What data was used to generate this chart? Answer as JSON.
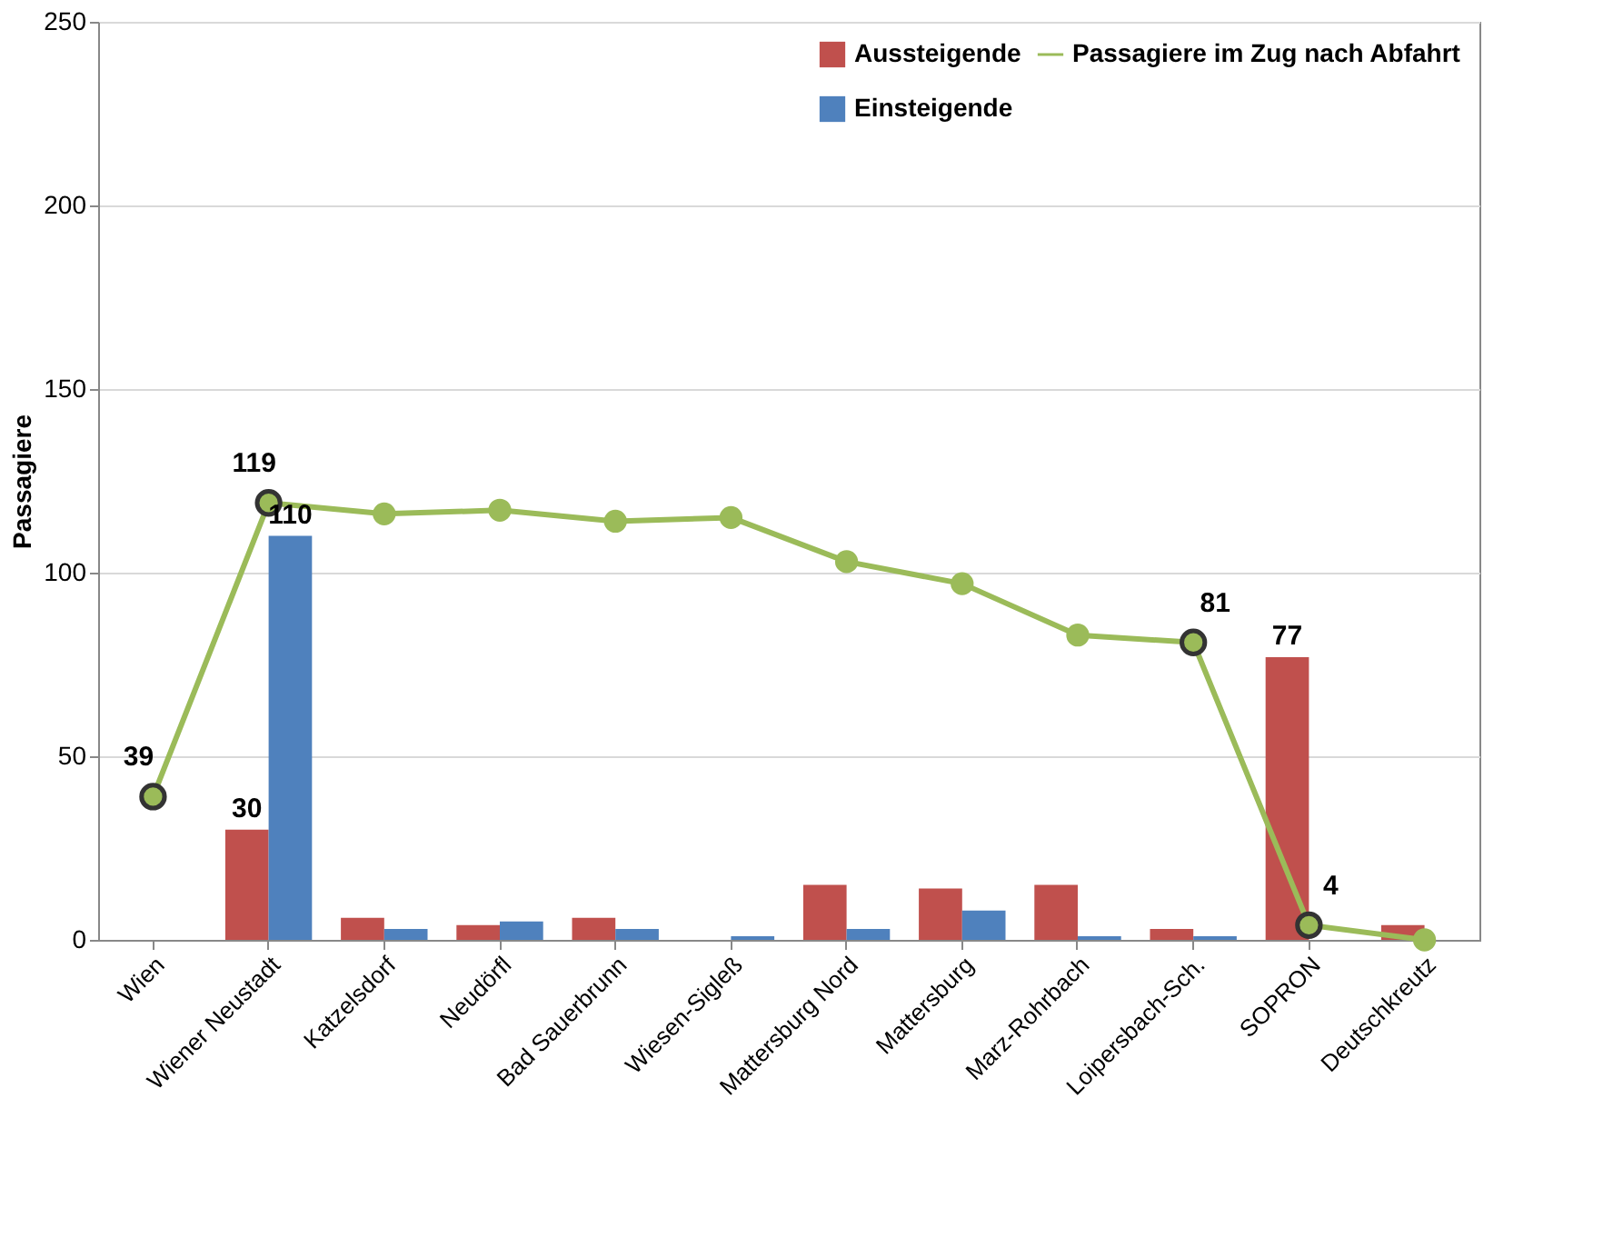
{
  "chart_data": {
    "type": "bar",
    "ylabel": "Passagiere",
    "categories": [
      "Wien",
      "Wiener Neustadt",
      "Katzelsdorf",
      "Neudörfl",
      "Bad Sauerbrunn",
      "Wiesen-Sigleß",
      "Mattersburg Nord",
      "Mattersburg",
      "Marz-Rohrbach",
      "Loipersbach-Sch.",
      "SOPRON",
      "Deutschkreutz"
    ],
    "series": [
      {
        "name": "Aussteigende",
        "color": "#c0504d",
        "values": [
          0,
          30,
          6,
          4,
          6,
          0,
          15,
          14,
          15,
          3,
          77,
          4
        ],
        "value_labels": [
          null,
          "30",
          null,
          null,
          null,
          null,
          null,
          null,
          null,
          null,
          "77",
          null
        ]
      },
      {
        "name": "Einsteigende",
        "color": "#4f81bd",
        "values": [
          0,
          110,
          3,
          5,
          3,
          1,
          3,
          8,
          1,
          1,
          0,
          0
        ],
        "value_labels": [
          null,
          "110",
          null,
          null,
          null,
          null,
          null,
          null,
          null,
          null,
          null,
          null
        ]
      },
      {
        "name": "Passagiere im Zug nach Abfahrt",
        "type": "line",
        "color": "#9bbb59",
        "marker": "circle",
        "values": [
          39,
          119,
          116,
          117,
          114,
          115,
          103,
          97,
          83,
          81,
          4,
          0
        ],
        "value_labels": [
          "39",
          "119",
          null,
          null,
          null,
          null,
          null,
          null,
          null,
          "81",
          "4",
          null
        ]
      }
    ],
    "ylim": [
      0,
      250
    ],
    "yticks": [
      0,
      50,
      100,
      150,
      200,
      250
    ],
    "grid": "y",
    "legend": "top right"
  }
}
